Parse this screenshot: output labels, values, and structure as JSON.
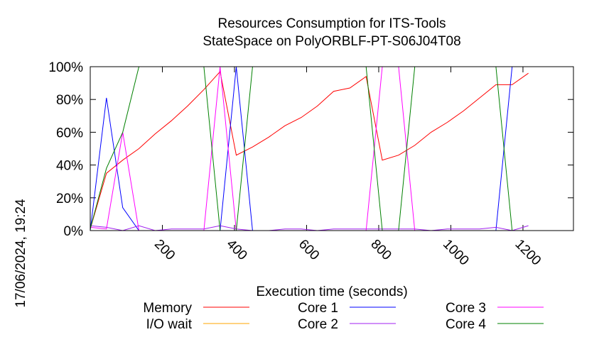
{
  "chart_data": {
    "type": "line",
    "title_line1": "Resources Consumption for ITS-Tools",
    "title_line2": "StateSpace on PolyORBLF-PT-S06J04T08",
    "xlabel": "Execution time (seconds)",
    "ylabel": "",
    "timestamp": "17/06/2024, 19:24",
    "xlim": [
      0,
      1340
    ],
    "ylim": [
      0,
      100
    ],
    "xticks": [
      200,
      400,
      600,
      800,
      1000,
      1200
    ],
    "yticks": [
      0,
      20,
      40,
      60,
      80,
      100
    ],
    "ytick_labels": [
      "0%",
      "20%",
      "40%",
      "60%",
      "80%",
      "100%"
    ],
    "grid": false,
    "legend_position": "bottom",
    "series": [
      {
        "name": "Memory",
        "color": "#ff0000",
        "points": [
          [
            0,
            1
          ],
          [
            45,
            35
          ],
          [
            90,
            43
          ],
          [
            135,
            50
          ],
          [
            180,
            59
          ],
          [
            225,
            67
          ],
          [
            270,
            76
          ],
          [
            315,
            86
          ],
          [
            360,
            97
          ],
          [
            405,
            46
          ],
          [
            450,
            51
          ],
          [
            495,
            57
          ],
          [
            540,
            64
          ],
          [
            585,
            69
          ],
          [
            630,
            76
          ],
          [
            675,
            85
          ],
          [
            720,
            87
          ],
          [
            765,
            94
          ],
          [
            810,
            43
          ],
          [
            855,
            46
          ],
          [
            900,
            52
          ],
          [
            945,
            60
          ],
          [
            990,
            66
          ],
          [
            1035,
            73
          ],
          [
            1080,
            81
          ],
          [
            1125,
            89
          ],
          [
            1170,
            89
          ],
          [
            1215,
            96
          ]
        ]
      },
      {
        "name": "I/O wait",
        "color": "#ffa500",
        "points": [
          [
            0,
            0
          ],
          [
            1215,
            0
          ]
        ]
      },
      {
        "name": "Core 1",
        "color": "#0000ff",
        "points": [
          [
            0,
            0
          ],
          [
            45,
            81
          ],
          [
            90,
            14
          ],
          [
            135,
            0
          ],
          [
            180,
            0
          ],
          [
            360,
            0
          ],
          [
            405,
            100
          ],
          [
            450,
            0
          ],
          [
            1080,
            0
          ],
          [
            1125,
            0
          ],
          [
            1170,
            100
          ],
          [
            1215,
            100
          ]
        ]
      },
      {
        "name": "Core 2",
        "color": "#a020f0",
        "points": [
          [
            0,
            3
          ],
          [
            45,
            2
          ],
          [
            90,
            0
          ],
          [
            135,
            3
          ],
          [
            180,
            0
          ],
          [
            225,
            1
          ],
          [
            270,
            1
          ],
          [
            315,
            1
          ],
          [
            360,
            3
          ],
          [
            405,
            1
          ],
          [
            450,
            0
          ],
          [
            495,
            0
          ],
          [
            540,
            1
          ],
          [
            585,
            1
          ],
          [
            630,
            0
          ],
          [
            675,
            1
          ],
          [
            720,
            1
          ],
          [
            765,
            1
          ],
          [
            810,
            1
          ],
          [
            855,
            1
          ],
          [
            900,
            1
          ],
          [
            945,
            0
          ],
          [
            990,
            1
          ],
          [
            1035,
            1
          ],
          [
            1080,
            1
          ],
          [
            1125,
            2
          ],
          [
            1170,
            0
          ],
          [
            1215,
            3
          ]
        ]
      },
      {
        "name": "Core 3",
        "color": "#ff00ff",
        "points": [
          [
            0,
            2
          ],
          [
            45,
            1
          ],
          [
            90,
            60
          ],
          [
            135,
            0
          ],
          [
            180,
            0
          ],
          [
            315,
            0
          ],
          [
            360,
            100
          ],
          [
            405,
            0
          ],
          [
            765,
            0
          ],
          [
            810,
            100
          ],
          [
            855,
            100
          ],
          [
            900,
            0
          ],
          [
            1215,
            0
          ]
        ]
      },
      {
        "name": "Core 4",
        "color": "#008000",
        "points": [
          [
            0,
            1
          ],
          [
            45,
            38
          ],
          [
            90,
            60
          ],
          [
            135,
            100
          ],
          [
            180,
            100
          ],
          [
            315,
            100
          ],
          [
            360,
            0
          ],
          [
            405,
            0
          ],
          [
            450,
            100
          ],
          [
            765,
            100
          ],
          [
            810,
            0
          ],
          [
            855,
            0
          ],
          [
            900,
            100
          ],
          [
            1125,
            100
          ],
          [
            1170,
            0
          ],
          [
            1215,
            0
          ]
        ]
      }
    ]
  }
}
